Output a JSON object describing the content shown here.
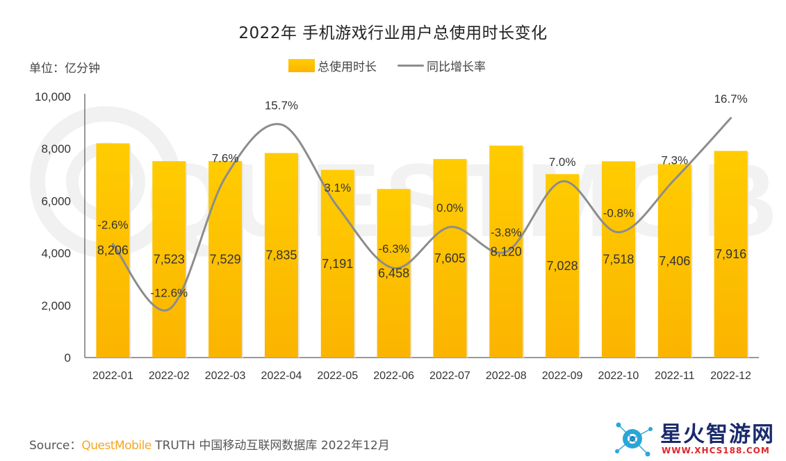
{
  "title": "2022年 手机游戏行业用户总使用时长变化",
  "unit_label": "单位：亿分钟",
  "source": {
    "prefix": "Source：",
    "brand": "QuestMobile",
    "text": " TRUTH 中国移动互联网数据库 2022年12月"
  },
  "watermark": "QUESTMOBILE",
  "logo": {
    "text": "星火智游网",
    "url": "WWW.XHCS188.COM"
  },
  "colors": {
    "bar_top": "#ffcc00",
    "bar_bottom": "#fbb400",
    "line": "#8c8c8c",
    "brand": "#f5a623"
  },
  "chart_data": {
    "type": "bar",
    "categories": [
      "2022-01",
      "2022-02",
      "2022-03",
      "2022-04",
      "2022-05",
      "2022-06",
      "2022-07",
      "2022-08",
      "2022-09",
      "2022-10",
      "2022-11",
      "2022-12"
    ],
    "series": [
      {
        "name": "总使用时长",
        "type": "bar",
        "values": [
          8206,
          7523,
          7529,
          7835,
          7191,
          6458,
          7605,
          8120,
          7028,
          7518,
          7406,
          7916
        ],
        "labels": [
          "8,206",
          "7,523",
          "7,529",
          "7,835",
          "7,191",
          "6,458",
          "7,605",
          "8,120",
          "7,028",
          "7,518",
          "7,406",
          "7,916"
        ]
      },
      {
        "name": "同比增长率",
        "type": "line",
        "values": [
          -2.6,
          -12.6,
          7.6,
          15.7,
          3.1,
          -6.3,
          0.0,
          -3.8,
          7.0,
          -0.8,
          7.3,
          16.7
        ],
        "labels": [
          "-2.6%",
          "-12.6%",
          "7.6%",
          "15.7%",
          "3.1%",
          "-6.3%",
          "0.0%",
          "-3.8%",
          "7.0%",
          "-0.8%",
          "7.3%",
          "16.7%"
        ]
      }
    ],
    "y_ticks": [
      "0",
      "2,000",
      "4,000",
      "6,000",
      "8,000",
      "10,000"
    ],
    "ylim": [
      0,
      10000
    ],
    "secondary_ylim": [
      -20,
      20
    ],
    "legend_position": "top-center",
    "grid": false
  }
}
